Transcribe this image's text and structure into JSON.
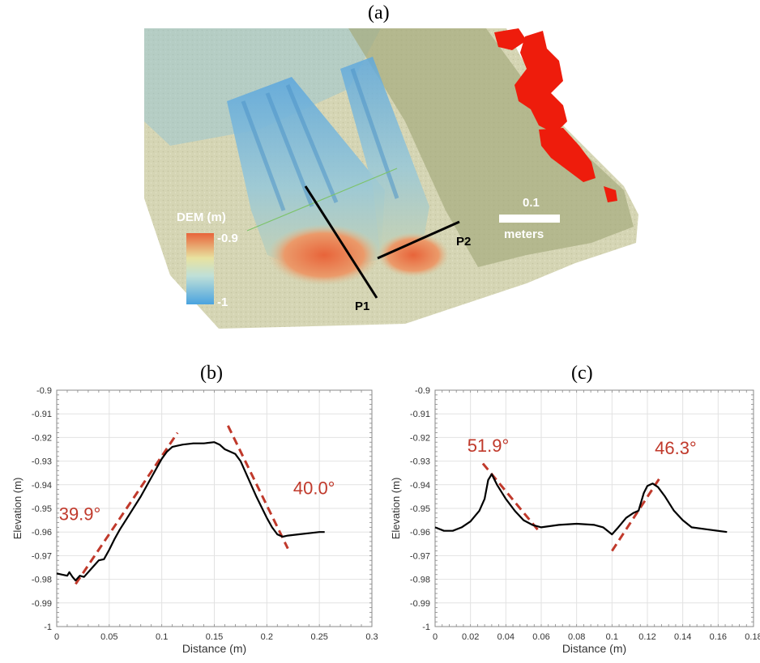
{
  "panels": {
    "a": "(a)",
    "b": "(b)",
    "c": "(c)"
  },
  "map": {
    "legend_title": "DEM (m)",
    "legend_max": "-0.9",
    "legend_min": "-1",
    "scale_value": "0.1",
    "scale_unit": "meters",
    "profile_1": "P1",
    "profile_2": "P2",
    "colors": {
      "high": "#e8643a",
      "mid": "#e8e2a0",
      "low": "#4aa3df",
      "overlay_red": "#ee1c0c",
      "ground": "#d7d6b6"
    }
  },
  "chart_data": [
    {
      "type": "line",
      "panel": "(b)",
      "xlabel": "Distance (m)",
      "ylabel": "Elevation (m)",
      "xlim": [
        0,
        0.3
      ],
      "ylim": [
        -1,
        -0.9
      ],
      "x_ticks": [
        "0",
        "0.05",
        "0.1",
        "0.15",
        "0.2",
        "0.25",
        "0.3"
      ],
      "y_ticks": [
        "-0.9",
        "-0.91",
        "-0.92",
        "-0.93",
        "-0.94",
        "-0.95",
        "-0.96",
        "-0.97",
        "-0.98",
        "-0.99",
        "-1"
      ],
      "grid": true,
      "series": [
        {
          "color": "#000000",
          "points": [
            [
              0.0,
              -0.9775
            ],
            [
              0.005,
              -0.978
            ],
            [
              0.01,
              -0.9785
            ],
            [
              0.012,
              -0.977
            ],
            [
              0.015,
              -0.979
            ],
            [
              0.018,
              -0.9805
            ],
            [
              0.022,
              -0.9785
            ],
            [
              0.026,
              -0.979
            ],
            [
              0.03,
              -0.977
            ],
            [
              0.035,
              -0.9745
            ],
            [
              0.04,
              -0.972
            ],
            [
              0.045,
              -0.9715
            ],
            [
              0.05,
              -0.9675
            ],
            [
              0.055,
              -0.963
            ],
            [
              0.06,
              -0.959
            ],
            [
              0.07,
              -0.952
            ],
            [
              0.08,
              -0.945
            ],
            [
              0.09,
              -0.937
            ],
            [
              0.1,
              -0.929
            ],
            [
              0.105,
              -0.926
            ],
            [
              0.11,
              -0.924
            ],
            [
              0.115,
              -0.9235
            ],
            [
              0.12,
              -0.923
            ],
            [
              0.13,
              -0.9225
            ],
            [
              0.14,
              -0.9225
            ],
            [
              0.15,
              -0.922
            ],
            [
              0.155,
              -0.923
            ],
            [
              0.16,
              -0.925
            ],
            [
              0.165,
              -0.926
            ],
            [
              0.17,
              -0.927
            ],
            [
              0.175,
              -0.93
            ],
            [
              0.18,
              -0.935
            ],
            [
              0.19,
              -0.945
            ],
            [
              0.2,
              -0.954
            ],
            [
              0.205,
              -0.958
            ],
            [
              0.21,
              -0.961
            ],
            [
              0.215,
              -0.962
            ],
            [
              0.22,
              -0.9615
            ],
            [
              0.23,
              -0.961
            ],
            [
              0.24,
              -0.9605
            ],
            [
              0.25,
              -0.96
            ],
            [
              0.255,
              -0.96
            ]
          ]
        }
      ],
      "fit_lines": [
        {
          "label": "39.9°",
          "color": "#c0392b",
          "from": [
            0.018,
            -0.982
          ],
          "to": [
            0.115,
            -0.918
          ]
        },
        {
          "label": "40.0°",
          "color": "#c0392b",
          "from": [
            0.163,
            -0.915
          ],
          "to": [
            0.22,
            -0.967
          ]
        }
      ]
    },
    {
      "type": "line",
      "panel": "(c)",
      "xlabel": "Distance (m)",
      "ylabel": "Elevation (m)",
      "xlim": [
        0,
        0.18
      ],
      "ylim": [
        -1,
        -0.9
      ],
      "x_ticks": [
        "0",
        "0.02",
        "0.04",
        "0.06",
        "0.08",
        "0.1",
        "0.12",
        "0.14",
        "0.16",
        "0.18"
      ],
      "y_ticks": [
        "-0.9",
        "-0.91",
        "-0.92",
        "-0.93",
        "-0.94",
        "-0.95",
        "-0.96",
        "-0.97",
        "-0.98",
        "-0.99",
        "-1"
      ],
      "grid": true,
      "series": [
        {
          "color": "#000000",
          "points": [
            [
              0.0,
              -0.958
            ],
            [
              0.005,
              -0.9595
            ],
            [
              0.01,
              -0.9595
            ],
            [
              0.015,
              -0.958
            ],
            [
              0.02,
              -0.9555
            ],
            [
              0.025,
              -0.951
            ],
            [
              0.028,
              -0.946
            ],
            [
              0.03,
              -0.938
            ],
            [
              0.032,
              -0.9355
            ],
            [
              0.035,
              -0.94
            ],
            [
              0.04,
              -0.946
            ],
            [
              0.045,
              -0.951
            ],
            [
              0.05,
              -0.955
            ],
            [
              0.055,
              -0.957
            ],
            [
              0.06,
              -0.958
            ],
            [
              0.07,
              -0.957
            ],
            [
              0.08,
              -0.9565
            ],
            [
              0.09,
              -0.957
            ],
            [
              0.095,
              -0.958
            ],
            [
              0.1,
              -0.961
            ],
            [
              0.103,
              -0.9585
            ],
            [
              0.108,
              -0.954
            ],
            [
              0.112,
              -0.952
            ],
            [
              0.115,
              -0.951
            ],
            [
              0.118,
              -0.9435
            ],
            [
              0.12,
              -0.9405
            ],
            [
              0.123,
              -0.9395
            ],
            [
              0.126,
              -0.941
            ],
            [
              0.13,
              -0.945
            ],
            [
              0.135,
              -0.951
            ],
            [
              0.14,
              -0.955
            ],
            [
              0.145,
              -0.958
            ],
            [
              0.155,
              -0.959
            ],
            [
              0.165,
              -0.96
            ]
          ]
        }
      ],
      "fit_lines": [
        {
          "label": "51.9°",
          "color": "#c0392b",
          "from": [
            0.027,
            -0.931
          ],
          "to": [
            0.058,
            -0.959
          ]
        },
        {
          "label": "46.3°",
          "color": "#c0392b",
          "from": [
            0.1,
            -0.968
          ],
          "to": [
            0.128,
            -0.936
          ]
        }
      ]
    }
  ]
}
